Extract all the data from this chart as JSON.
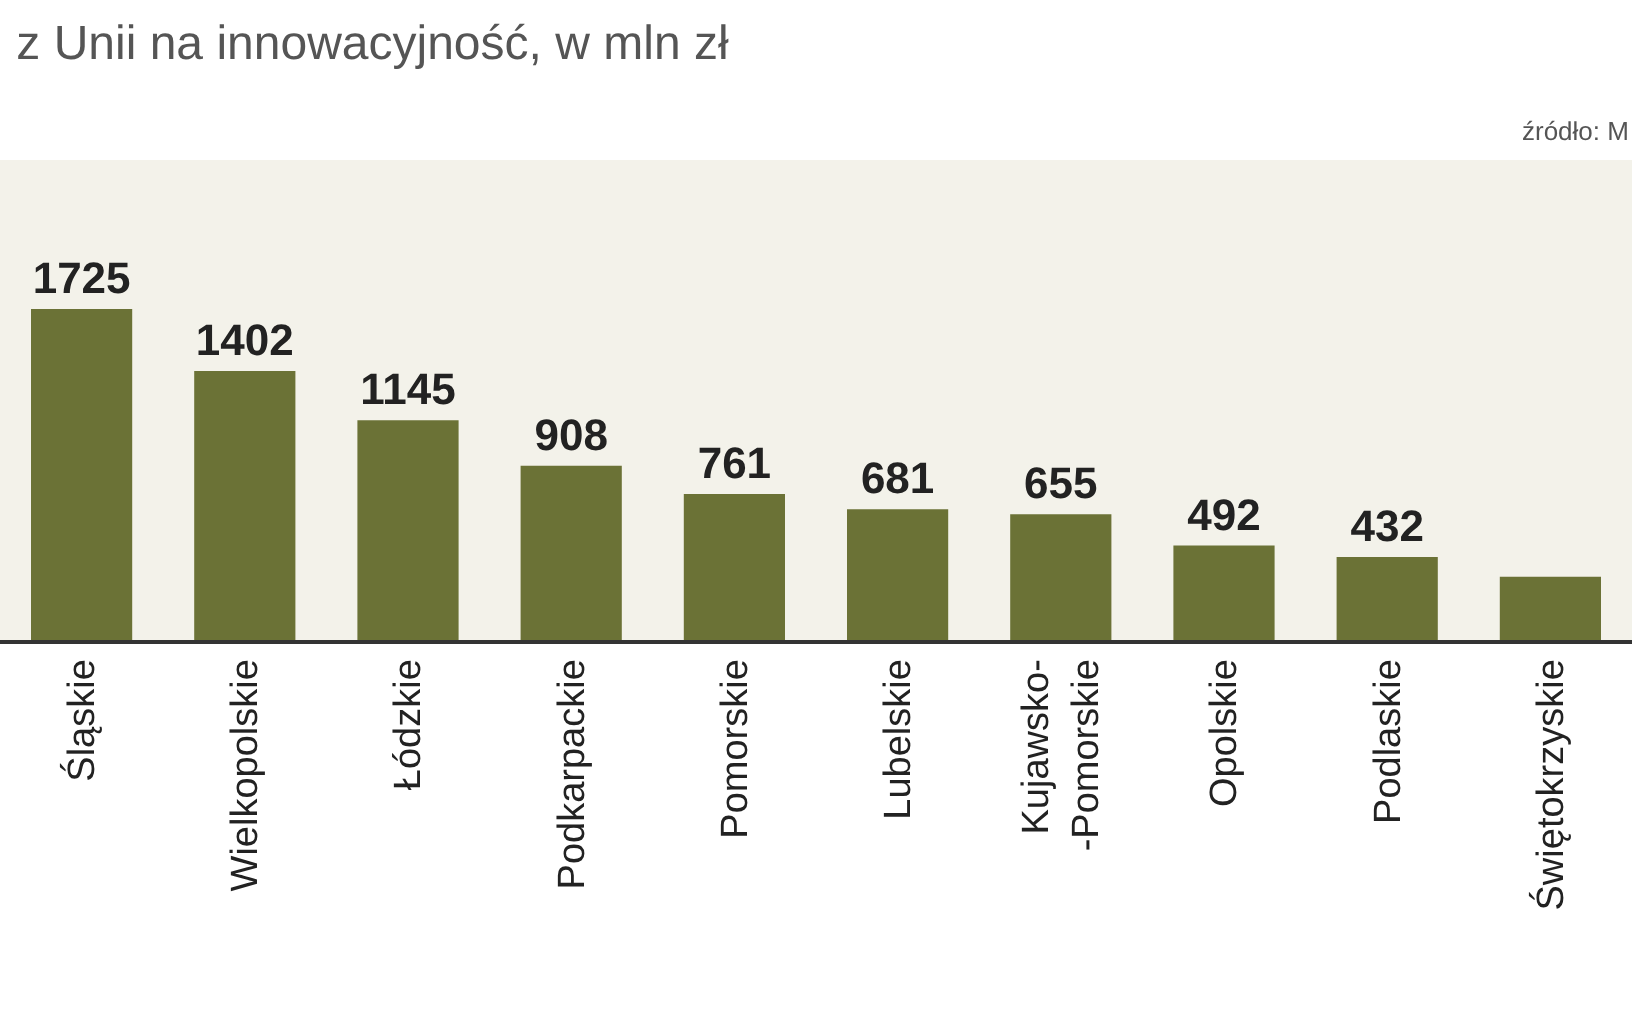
{
  "chart_data": {
    "type": "bar",
    "title": "z Unii na innowacyjność, w mln zł",
    "categories": [
      "Śląskie",
      "Wielkopolskie",
      "Łódzkie",
      "Podkarpackie",
      "Pomorskie",
      "Lubelskie",
      "Kujawsko-\n-Pomorskie",
      "Opolskie",
      "Podlaskie",
      "Świętokrzyskie"
    ],
    "values": [
      1725,
      1402,
      1145,
      908,
      761,
      681,
      655,
      492,
      432,
      330
    ],
    "value_labels": [
      "1725",
      "1402",
      "1145",
      "908",
      "761",
      "681",
      "655",
      "492",
      "432",
      null
    ],
    "color": "#6b7236",
    "annotations": [
      "źródło: M"
    ],
    "grid": false,
    "legend": false
  }
}
